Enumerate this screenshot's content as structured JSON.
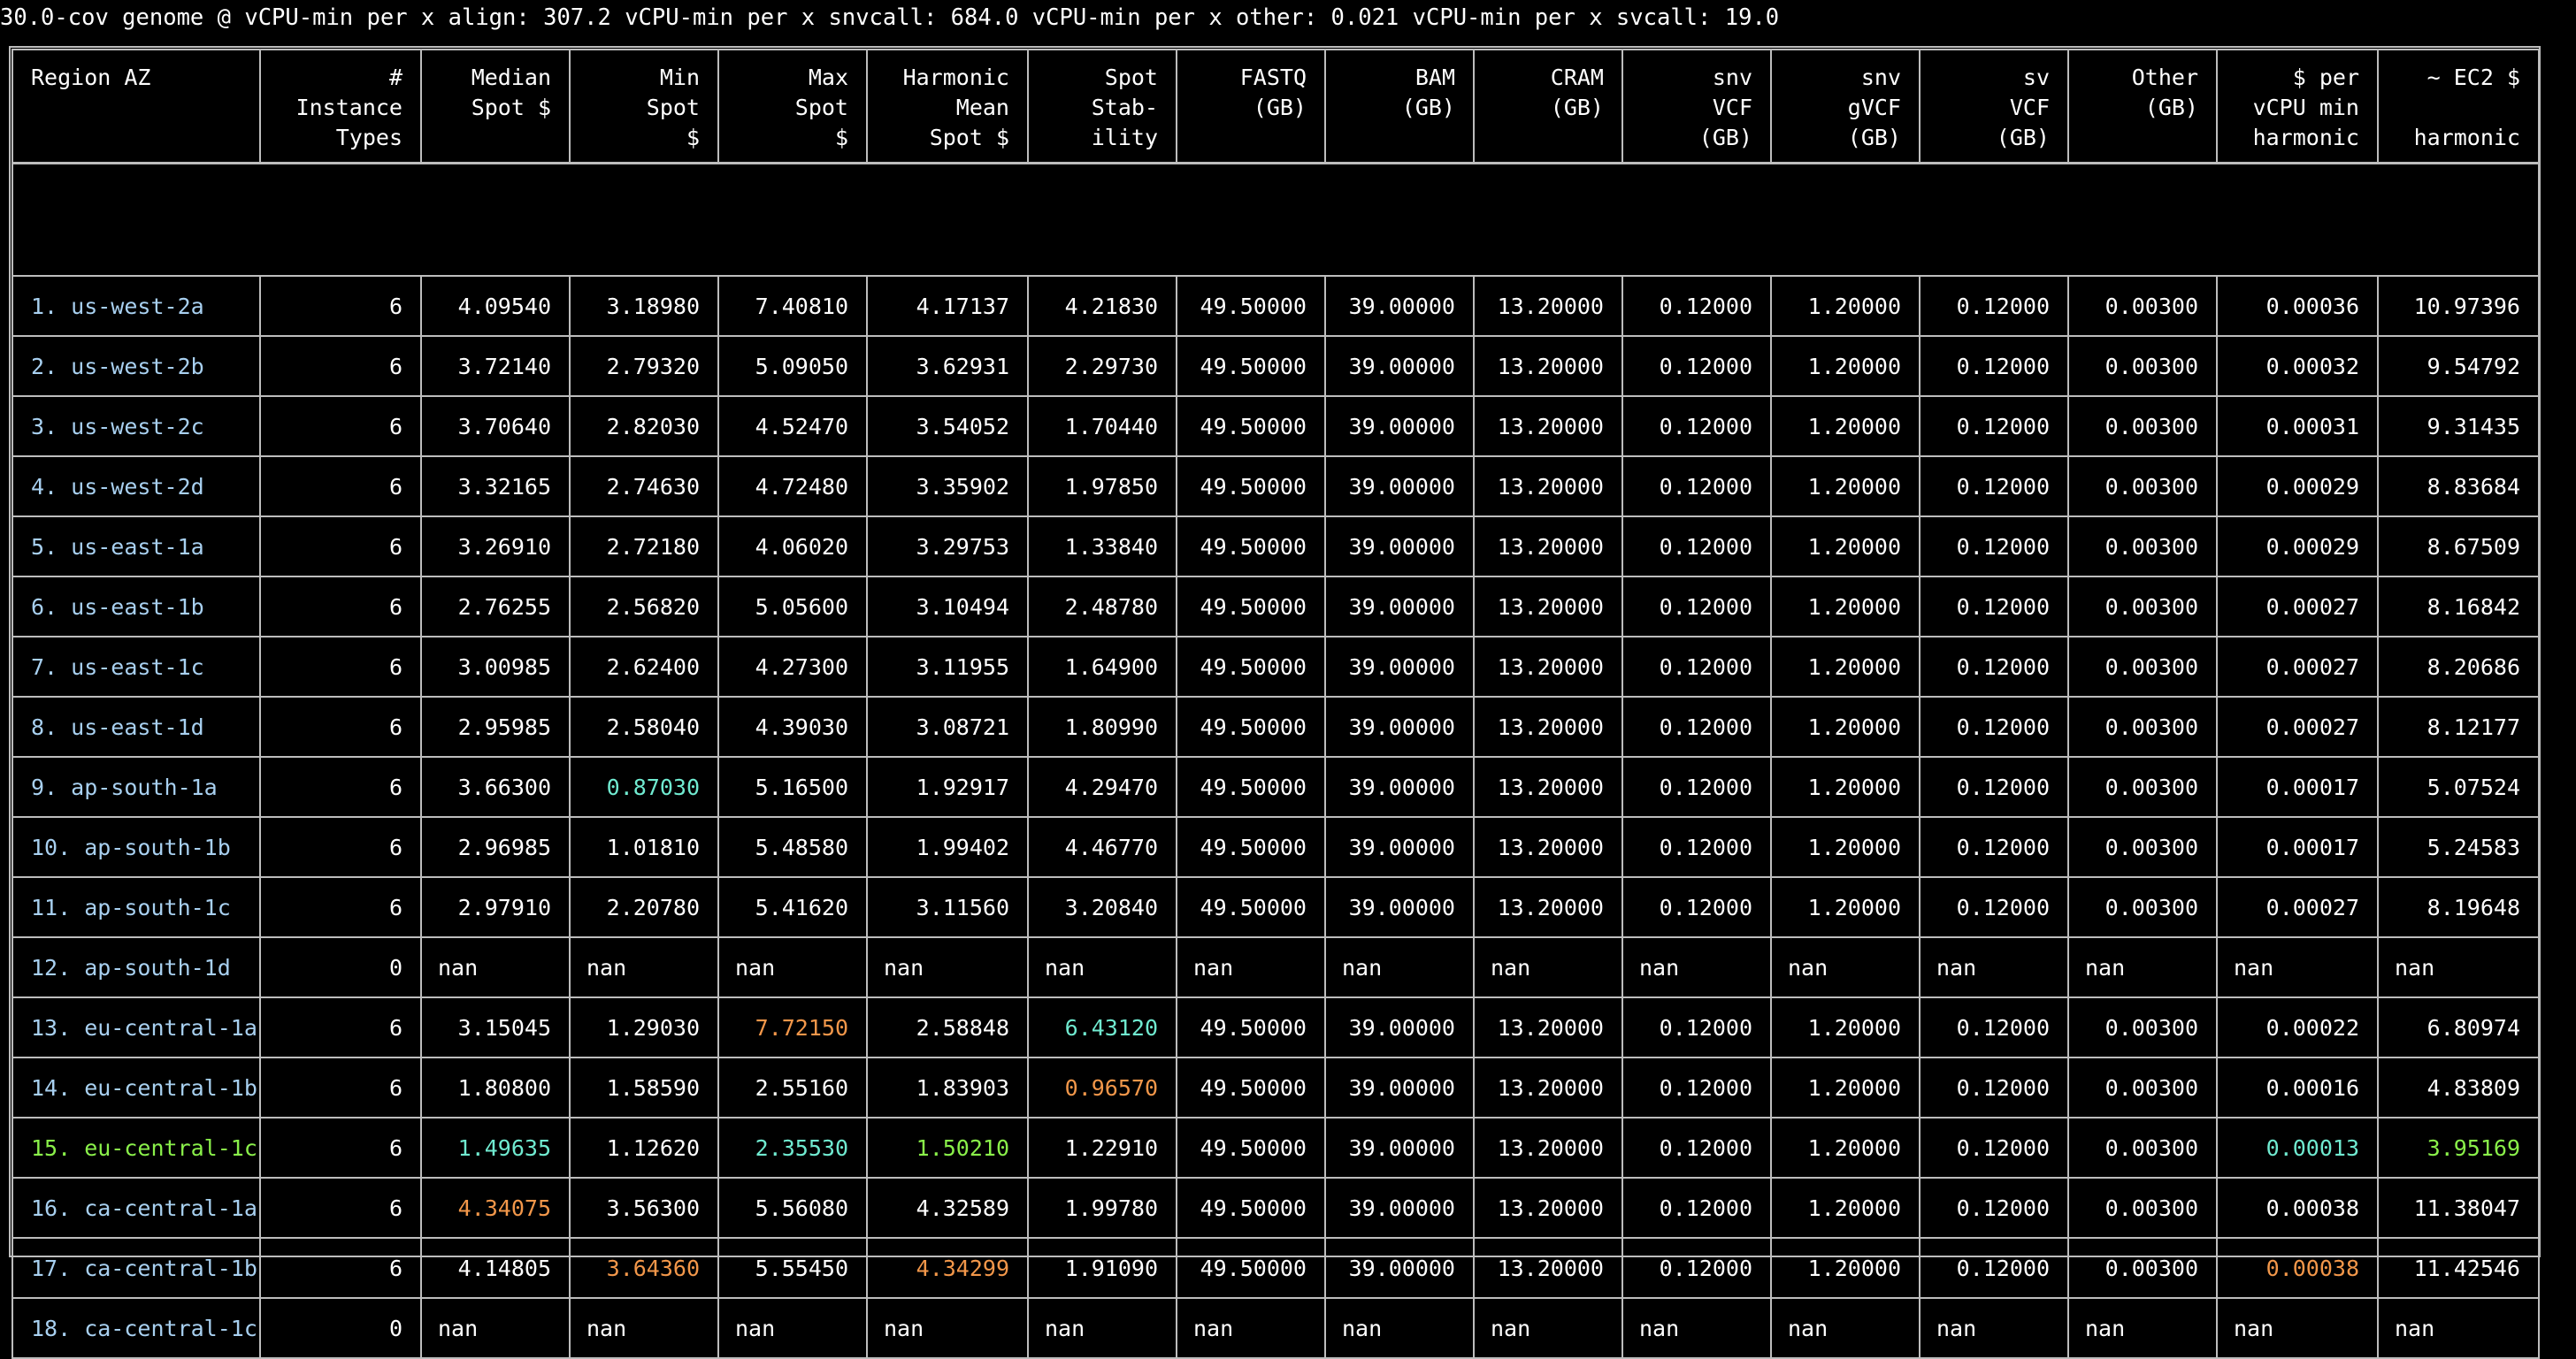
{
  "header": "30.0-cov genome @ vCPU-min per x align: 307.2 vCPU-min per x snvcall: 684.0 vCPU-min per x other: 0.021 vCPU-min per x svcall: 19.0",
  "colors": {
    "default": "#ffffff",
    "region": "#a8d0f0",
    "cyan": "#70ead0",
    "orange": "#f2974a",
    "green": "#8af04a",
    "border": "#bdbdbd",
    "background": "#000000"
  },
  "columns": [
    {
      "key": "region",
      "lines": [
        "Region AZ"
      ]
    },
    {
      "key": "types",
      "lines": [
        "#",
        "Instance",
        "Types"
      ]
    },
    {
      "key": "median",
      "lines": [
        "Median",
        "Spot $"
      ]
    },
    {
      "key": "min",
      "lines": [
        "Min",
        "Spot",
        "$"
      ]
    },
    {
      "key": "max",
      "lines": [
        "Max",
        "Spot",
        "$"
      ]
    },
    {
      "key": "harmonic",
      "lines": [
        "Harmonic",
        "Mean",
        "Spot $"
      ]
    },
    {
      "key": "stability",
      "lines": [
        "Spot",
        "Stab-",
        "ility"
      ]
    },
    {
      "key": "fastq",
      "lines": [
        "FASTQ",
        "(GB)"
      ]
    },
    {
      "key": "bam",
      "lines": [
        "BAM",
        "(GB)"
      ]
    },
    {
      "key": "cram",
      "lines": [
        "CRAM",
        "(GB)"
      ]
    },
    {
      "key": "snvvcf",
      "lines": [
        "snv",
        "VCF",
        "(GB)"
      ]
    },
    {
      "key": "snvgvcf",
      "lines": [
        "snv",
        "gVCF",
        "(GB)"
      ]
    },
    {
      "key": "svvcf",
      "lines": [
        "sv",
        "VCF",
        "(GB)"
      ]
    },
    {
      "key": "other",
      "lines": [
        "Other",
        "(GB)"
      ]
    },
    {
      "key": "pervcpu",
      "lines": [
        "$ per",
        "vCPU min",
        "harmonic"
      ]
    },
    {
      "key": "ec2",
      "lines": [
        "~ EC2 $",
        "",
        "harmonic"
      ]
    }
  ],
  "rows": [
    {
      "region": "1. us-west-2a",
      "values": [
        "6",
        "4.09540",
        "3.18980",
        "7.40810",
        "4.17137",
        "4.21830",
        "49.50000",
        "39.00000",
        "13.20000",
        "0.12000",
        "1.20000",
        "0.12000",
        "0.00300",
        "0.00036",
        "10.97396"
      ]
    },
    {
      "region": "2. us-west-2b",
      "values": [
        "6",
        "3.72140",
        "2.79320",
        "5.09050",
        "3.62931",
        "2.29730",
        "49.50000",
        "39.00000",
        "13.20000",
        "0.12000",
        "1.20000",
        "0.12000",
        "0.00300",
        "0.00032",
        "9.54792"
      ]
    },
    {
      "region": "3. us-west-2c",
      "values": [
        "6",
        "3.70640",
        "2.82030",
        "4.52470",
        "3.54052",
        "1.70440",
        "49.50000",
        "39.00000",
        "13.20000",
        "0.12000",
        "1.20000",
        "0.12000",
        "0.00300",
        "0.00031",
        "9.31435"
      ]
    },
    {
      "region": "4. us-west-2d",
      "values": [
        "6",
        "3.32165",
        "2.74630",
        "4.72480",
        "3.35902",
        "1.97850",
        "49.50000",
        "39.00000",
        "13.20000",
        "0.12000",
        "1.20000",
        "0.12000",
        "0.00300",
        "0.00029",
        "8.83684"
      ]
    },
    {
      "region": "5. us-east-1a",
      "values": [
        "6",
        "3.26910",
        "2.72180",
        "4.06020",
        "3.29753",
        "1.33840",
        "49.50000",
        "39.00000",
        "13.20000",
        "0.12000",
        "1.20000",
        "0.12000",
        "0.00300",
        "0.00029",
        "8.67509"
      ]
    },
    {
      "region": "6. us-east-1b",
      "values": [
        "6",
        "2.76255",
        "2.56820",
        "5.05600",
        "3.10494",
        "2.48780",
        "49.50000",
        "39.00000",
        "13.20000",
        "0.12000",
        "1.20000",
        "0.12000",
        "0.00300",
        "0.00027",
        "8.16842"
      ]
    },
    {
      "region": "7. us-east-1c",
      "values": [
        "6",
        "3.00985",
        "2.62400",
        "4.27300",
        "3.11955",
        "1.64900",
        "49.50000",
        "39.00000",
        "13.20000",
        "0.12000",
        "1.20000",
        "0.12000",
        "0.00300",
        "0.00027",
        "8.20686"
      ]
    },
    {
      "region": "8. us-east-1d",
      "values": [
        "6",
        "2.95985",
        "2.58040",
        "4.39030",
        "3.08721",
        "1.80990",
        "49.50000",
        "39.00000",
        "13.20000",
        "0.12000",
        "1.20000",
        "0.12000",
        "0.00300",
        "0.00027",
        "8.12177"
      ]
    },
    {
      "region": "9. ap-south-1a",
      "values": [
        "6",
        "3.66300",
        "0.87030",
        "5.16500",
        "1.92917",
        "4.29470",
        "49.50000",
        "39.00000",
        "13.20000",
        "0.12000",
        "1.20000",
        "0.12000",
        "0.00300",
        "0.00017",
        "5.07524"
      ],
      "colors": {
        "2": "cyan"
      }
    },
    {
      "region": "10. ap-south-1b",
      "values": [
        "6",
        "2.96985",
        "1.01810",
        "5.48580",
        "1.99402",
        "4.46770",
        "49.50000",
        "39.00000",
        "13.20000",
        "0.12000",
        "1.20000",
        "0.12000",
        "0.00300",
        "0.00017",
        "5.24583"
      ]
    },
    {
      "region": "11. ap-south-1c",
      "values": [
        "6",
        "2.97910",
        "2.20780",
        "5.41620",
        "3.11560",
        "3.20840",
        "49.50000",
        "39.00000",
        "13.20000",
        "0.12000",
        "1.20000",
        "0.12000",
        "0.00300",
        "0.00027",
        "8.19648"
      ]
    },
    {
      "region": "12. ap-south-1d",
      "values": [
        "0",
        "nan",
        "nan",
        "nan",
        "nan",
        "nan",
        "nan",
        "nan",
        "nan",
        "nan",
        "nan",
        "nan",
        "nan",
        "nan",
        "nan"
      ]
    },
    {
      "region": "13. eu-central-1a",
      "values": [
        "6",
        "3.15045",
        "1.29030",
        "7.72150",
        "2.58848",
        "6.43120",
        "49.50000",
        "39.00000",
        "13.20000",
        "0.12000",
        "1.20000",
        "0.12000",
        "0.00300",
        "0.00022",
        "6.80974"
      ],
      "colors": {
        "3": "orange",
        "5": "cyan"
      }
    },
    {
      "region": "14. eu-central-1b",
      "values": [
        "6",
        "1.80800",
        "1.58590",
        "2.55160",
        "1.83903",
        "0.96570",
        "49.50000",
        "39.00000",
        "13.20000",
        "0.12000",
        "1.20000",
        "0.12000",
        "0.00300",
        "0.00016",
        "4.83809"
      ],
      "colors": {
        "5": "orange"
      }
    },
    {
      "region": "15. eu-central-1c",
      "region_color": "green",
      "values": [
        "6",
        "1.49635",
        "1.12620",
        "2.35530",
        "1.50210",
        "1.22910",
        "49.50000",
        "39.00000",
        "13.20000",
        "0.12000",
        "1.20000",
        "0.12000",
        "0.00300",
        "0.00013",
        "3.95169"
      ],
      "colors": {
        "1": "cyan",
        "3": "cyan",
        "4": "green",
        "13": "cyan",
        "14": "green"
      }
    },
    {
      "region": "16. ca-central-1a",
      "values": [
        "6",
        "4.34075",
        "3.56300",
        "5.56080",
        "4.32589",
        "1.99780",
        "49.50000",
        "39.00000",
        "13.20000",
        "0.12000",
        "1.20000",
        "0.12000",
        "0.00300",
        "0.00038",
        "11.38047"
      ],
      "colors": {
        "1": "orange"
      }
    },
    {
      "region": "17. ca-central-1b",
      "values": [
        "6",
        "4.14805",
        "3.64360",
        "5.55450",
        "4.34299",
        "1.91090",
        "49.50000",
        "39.00000",
        "13.20000",
        "0.12000",
        "1.20000",
        "0.12000",
        "0.00300",
        "0.00038",
        "11.42546"
      ],
      "colors": {
        "2": "orange",
        "4": "orange",
        "13": "orange"
      }
    },
    {
      "region": "18. ca-central-1c",
      "values": [
        "0",
        "nan",
        "nan",
        "nan",
        "nan",
        "nan",
        "nan",
        "nan",
        "nan",
        "nan",
        "nan",
        "nan",
        "nan",
        "nan",
        "nan"
      ]
    }
  ]
}
